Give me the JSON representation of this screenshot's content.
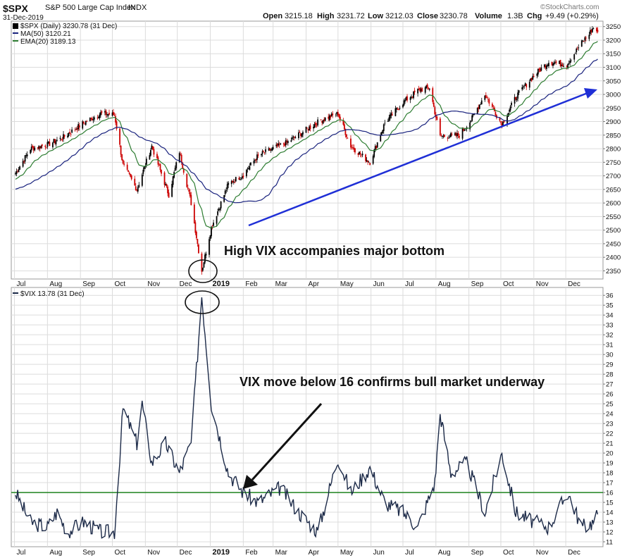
{
  "header": {
    "symbol": "$SPX",
    "description": "S&P 500 Large Cap Index",
    "exchange": "INDX",
    "date": "31-Dec-2019",
    "quote_label_open": "Open",
    "quote_open": "3215.18",
    "quote_label_high": "High",
    "quote_high": "3231.72",
    "quote_label_low": "Low",
    "quote_low": "3212.03",
    "quote_label_close": "Close",
    "quote_close": "3230.78",
    "quote_label_volume": "Volume",
    "quote_volume": "1.3B",
    "quote_label_chg": "Chg",
    "quote_chg": "+9.49 (+0.29%)",
    "watermark": "©StockCharts.com"
  },
  "legend": {
    "spx": "$SPX (Daily) 3230.78 (31 Dec)",
    "ma50": "MA(50) 3120.21",
    "ema20": "EMA(20) 3189.13",
    "vix": "$VIX 13.78 (31 Dec)"
  },
  "annotations": {
    "bottom_text": "High VIX accompanies major bottom",
    "vix_text": "VIX move below 16 confirms bull market underway"
  },
  "colors": {
    "ma50": "#1a237e",
    "ema20": "#2e7d32",
    "up_candle": "#000000",
    "down_candle": "#cc0000",
    "vix_line": "#1c2a48",
    "threshold": "#2e8b2e",
    "trend_arrow": "#1f2fd6",
    "grid": "#dcdcdc"
  },
  "chart_data": [
    {
      "type": "line",
      "name": "$SPX (Daily)",
      "x": [
        "2018-07-02",
        "2018-07-16",
        "2018-08-01",
        "2018-08-15",
        "2018-09-04",
        "2018-09-20",
        "2018-10-03",
        "2018-10-11",
        "2018-10-24",
        "2018-11-07",
        "2018-11-23",
        "2018-12-03",
        "2018-12-14",
        "2018-12-24",
        "2019-01-02",
        "2019-01-18",
        "2019-02-01",
        "2019-02-15",
        "2019-03-01",
        "2019-03-15",
        "2019-04-01",
        "2019-04-15",
        "2019-05-01",
        "2019-05-13",
        "2019-05-31",
        "2019-06-14",
        "2019-07-01",
        "2019-07-15",
        "2019-07-26",
        "2019-08-05",
        "2019-08-23",
        "2019-09-03",
        "2019-09-16",
        "2019-10-02",
        "2019-10-15",
        "2019-11-01",
        "2019-11-15",
        "2019-12-02",
        "2019-12-16",
        "2019-12-27",
        "2019-12-31"
      ],
      "close": [
        2710,
        2800,
        2815,
        2840,
        2895,
        2930,
        2925,
        2740,
        2650,
        2810,
        2630,
        2790,
        2600,
        2350,
        2510,
        2670,
        2705,
        2775,
        2800,
        2825,
        2870,
        2905,
        2930,
        2810,
        2750,
        2895,
        2970,
        3015,
        3025,
        2845,
        2850,
        2905,
        3000,
        2890,
        2990,
        3070,
        3120,
        3110,
        3190,
        3245,
        3230
      ],
      "ylim": [
        2320,
        3270
      ],
      "yticks": [
        2350,
        2400,
        2450,
        2500,
        2550,
        2600,
        2650,
        2700,
        2750,
        2800,
        2850,
        2900,
        2950,
        3000,
        3050,
        3100,
        3150,
        3200,
        3250
      ],
      "overlays": [
        {
          "name": "MA(50)",
          "last": 3120.21
        },
        {
          "name": "EMA(20)",
          "last": 3189.13
        }
      ]
    },
    {
      "type": "line",
      "name": "$VIX",
      "x": [
        "2018-07-02",
        "2018-07-16",
        "2018-08-01",
        "2018-08-10",
        "2018-08-20",
        "2018-09-04",
        "2018-09-20",
        "2018-10-03",
        "2018-10-11",
        "2018-10-24",
        "2018-10-29",
        "2018-11-07",
        "2018-11-20",
        "2018-12-03",
        "2018-12-14",
        "2018-12-24",
        "2019-01-02",
        "2019-01-18",
        "2019-02-01",
        "2019-02-15",
        "2019-03-08",
        "2019-03-25",
        "2019-04-12",
        "2019-05-01",
        "2019-05-13",
        "2019-05-31",
        "2019-06-14",
        "2019-07-01",
        "2019-07-15",
        "2019-07-31",
        "2019-08-05",
        "2019-08-15",
        "2019-08-30",
        "2019-09-16",
        "2019-10-02",
        "2019-10-15",
        "2019-11-01",
        "2019-11-15",
        "2019-12-03",
        "2019-12-16",
        "2019-12-27",
        "2019-12-31"
      ],
      "values": [
        16,
        13,
        12.5,
        14,
        12,
        13,
        12,
        12,
        24.5,
        21,
        25,
        19,
        21,
        18,
        21,
        36,
        25,
        18,
        16,
        15,
        16.5,
        14,
        12,
        19.5,
        16,
        18.5,
        15,
        14,
        12.5,
        17,
        24,
        18,
        19,
        14,
        20,
        14,
        13,
        12.5,
        16,
        12.5,
        13,
        13.78
      ],
      "threshold": 16,
      "ylim": [
        10.5,
        36.8
      ],
      "yticks": [
        11,
        12,
        13,
        14,
        15,
        16,
        17,
        18,
        19,
        20,
        21,
        22,
        23,
        24,
        25,
        26,
        27,
        28,
        29,
        30,
        31,
        32,
        33,
        34,
        35,
        36
      ]
    }
  ],
  "x_axis": {
    "labels": [
      "Jul",
      "Aug",
      "Sep",
      "Oct",
      "Nov",
      "Dec",
      "2019",
      "Feb",
      "Mar",
      "Apr",
      "May",
      "Jun",
      "Jul",
      "Aug",
      "Sep",
      "Oct",
      "Nov",
      "Dec"
    ]
  }
}
